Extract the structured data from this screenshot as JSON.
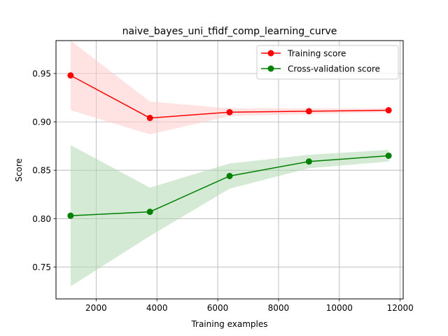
{
  "chart_data": {
    "type": "line",
    "title": "naive_bayes_uni_tfidf_comp_learning_curve",
    "xlabel": "Training examples",
    "ylabel": "Score",
    "xlim": [
      680,
      12100
    ],
    "ylim": [
      0.717,
      0.984
    ],
    "xticks": [
      2000,
      4000,
      6000,
      8000,
      10000,
      12000
    ],
    "yticks": [
      0.75,
      0.8,
      0.85,
      0.9,
      0.95
    ],
    "xtick_labels": [
      "2000",
      "4000",
      "6000",
      "8000",
      "10000",
      "12000"
    ],
    "ytick_labels": [
      "0.75",
      "0.80",
      "0.85",
      "0.90",
      "0.95"
    ],
    "grid": true,
    "legend_position": "top-right",
    "x": [
      1160,
      3770,
      6390,
      9000,
      11620
    ],
    "series": [
      {
        "name": "Training score",
        "color": "#ff0000",
        "band_color": "#ffcccc",
        "values": [
          0.948,
          0.904,
          0.91,
          0.911,
          0.912
        ],
        "band_upper": [
          0.984,
          0.921,
          0.914,
          0.914,
          0.914
        ],
        "band_lower": [
          0.912,
          0.887,
          0.906,
          0.908,
          0.91
        ]
      },
      {
        "name": "Cross-validation score",
        "color": "#008000",
        "band_color": "#b2d8b2",
        "values": [
          0.803,
          0.807,
          0.844,
          0.859,
          0.865
        ],
        "band_upper": [
          0.876,
          0.832,
          0.857,
          0.866,
          0.871
        ],
        "band_lower": [
          0.73,
          0.782,
          0.831,
          0.852,
          0.859
        ]
      }
    ]
  }
}
